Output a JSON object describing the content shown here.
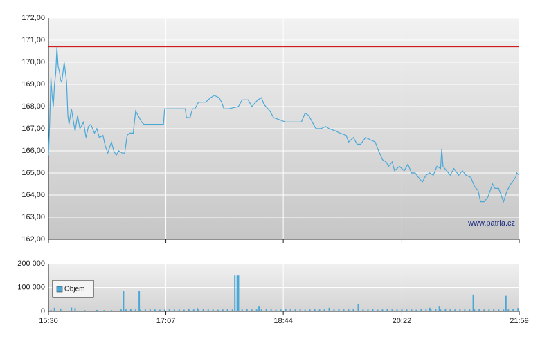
{
  "chart_data": [
    {
      "type": "line",
      "color": "#4aa8d8",
      "xlim": [
        0,
        389
      ],
      "ylim": [
        162,
        172
      ],
      "yticks": [
        {
          "value": 162,
          "label": "162,00"
        },
        {
          "value": 163,
          "label": "163,00"
        },
        {
          "value": 164,
          "label": "164,00"
        },
        {
          "value": 165,
          "label": "165,00"
        },
        {
          "value": 166,
          "label": "166,00"
        },
        {
          "value": 167,
          "label": "167,00"
        },
        {
          "value": 168,
          "label": "168,00"
        },
        {
          "value": 169,
          "label": "169,00"
        },
        {
          "value": 170,
          "label": "170,00"
        },
        {
          "value": 171,
          "label": "171,00"
        },
        {
          "value": 172,
          "label": "172,00"
        }
      ],
      "grid": true,
      "reference_line": {
        "value": 170.7,
        "color": "#cc0000"
      },
      "annotation": "www.patria.cz",
      "x": [
        0,
        1,
        2,
        3,
        4,
        5,
        6,
        7,
        8,
        9,
        10,
        11,
        13,
        15,
        16,
        17,
        19,
        21,
        22,
        24,
        26,
        29,
        31,
        33,
        35,
        38,
        40,
        42,
        45,
        47,
        49,
        52,
        54,
        56,
        58,
        61,
        63,
        65,
        67,
        70,
        72,
        74,
        77,
        79,
        86,
        95,
        96,
        103,
        113,
        114,
        117,
        119,
        121,
        124,
        130,
        134,
        137,
        141,
        143,
        145,
        149,
        157,
        160,
        165,
        168,
        173,
        176,
        178,
        183,
        186,
        191,
        196,
        200,
        209,
        212,
        215,
        218,
        221,
        225,
        229,
        232,
        237,
        241,
        246,
        248,
        252,
        255,
        258,
        262,
        266,
        270,
        272,
        276,
        279,
        281,
        284,
        286,
        290,
        294,
        297,
        300,
        303,
        307,
        309,
        312,
        315,
        318,
        321,
        324,
        325,
        326,
        329,
        332,
        335,
        339,
        342,
        345,
        349,
        352,
        355,
        357,
        360,
        363,
        365,
        367,
        369,
        372,
        374,
        376,
        379,
        382,
        386,
        387,
        389
      ],
      "values": [
        165.8,
        167.2,
        169.3,
        168.5,
        168.0,
        169.0,
        169.5,
        170.7,
        169.8,
        169.6,
        169.2,
        169.1,
        170.0,
        169.1,
        167.6,
        167.2,
        167.9,
        167.2,
        166.9,
        167.6,
        167.0,
        167.3,
        166.6,
        167.1,
        167.2,
        166.8,
        167.0,
        166.6,
        166.7,
        166.2,
        165.9,
        166.4,
        166.0,
        165.8,
        166.0,
        165.9,
        165.9,
        166.7,
        166.8,
        166.8,
        167.8,
        167.6,
        167.3,
        167.2,
        167.2,
        167.2,
        167.9,
        167.9,
        167.9,
        167.5,
        167.5,
        167.9,
        167.9,
        168.2,
        168.2,
        168.4,
        168.5,
        168.4,
        168.2,
        167.9,
        167.9,
        168.0,
        168.3,
        168.3,
        168.0,
        168.3,
        168.4,
        168.1,
        167.8,
        167.5,
        167.4,
        167.3,
        167.3,
        167.3,
        167.7,
        167.6,
        167.3,
        167.0,
        167.0,
        167.1,
        167.0,
        166.9,
        166.8,
        166.7,
        166.4,
        166.6,
        166.3,
        166.3,
        166.6,
        166.5,
        166.4,
        166.1,
        165.6,
        165.5,
        165.3,
        165.5,
        165.1,
        165.3,
        165.1,
        165.4,
        165.0,
        165.0,
        164.7,
        164.6,
        164.9,
        165.0,
        164.9,
        165.3,
        165.2,
        166.1,
        165.3,
        165.1,
        164.9,
        165.2,
        164.9,
        165.1,
        164.9,
        164.8,
        164.4,
        164.2,
        163.7,
        163.7,
        163.9,
        164.2,
        164.5,
        164.3,
        164.3,
        164.0,
        163.7,
        164.2,
        164.5,
        164.8,
        165.0,
        164.9
      ]
    },
    {
      "type": "bar",
      "xlim": [
        0,
        389
      ],
      "ylim": [
        0,
        200000
      ],
      "yticks": [
        0,
        {
          "value": 100000,
          "label": "100 000"
        },
        {
          "value": 200000,
          "label": "200 000"
        }
      ],
      "xticks": [
        {
          "value": 0,
          "label": "15:30"
        },
        {
          "value": 97,
          "label": "17:07"
        },
        {
          "value": 194,
          "label": "18:44"
        },
        {
          "value": 292,
          "label": "20:22"
        },
        {
          "value": 389,
          "label": "21:59"
        }
      ],
      "grid": true,
      "legend": "left",
      "series": [
        {
          "name": "Objem",
          "color": "#4aa8d8",
          "x": [
            2,
            5,
            10,
            19,
            22,
            30,
            40,
            46,
            52,
            60,
            62,
            64,
            68,
            72,
            75,
            76,
            80,
            84,
            88,
            92,
            96,
            100,
            104,
            108,
            112,
            116,
            120,
            123,
            124,
            128,
            132,
            136,
            140,
            144,
            148,
            152,
            154,
            156,
            157,
            160,
            164,
            168,
            172,
            174,
            176,
            180,
            184,
            188,
            192,
            196,
            200,
            204,
            208,
            212,
            216,
            220,
            224,
            228,
            232,
            236,
            240,
            244,
            248,
            252,
            256,
            260,
            264,
            268,
            272,
            276,
            280,
            284,
            288,
            292,
            296,
            300,
            304,
            308,
            312,
            315,
            316,
            320,
            323,
            324,
            328,
            332,
            336,
            340,
            344,
            348,
            351,
            352,
            356,
            360,
            364,
            368,
            372,
            376,
            378,
            380,
            384,
            388
          ],
          "values": [
            6000,
            15000,
            12000,
            16000,
            14000,
            5000,
            6000,
            5000,
            5000,
            8000,
            84000,
            8000,
            9000,
            8000,
            84000,
            7000,
            8000,
            9000,
            8000,
            7000,
            8000,
            9000,
            8000,
            8000,
            7000,
            9000,
            8000,
            14000,
            8000,
            9000,
            8000,
            8000,
            7000,
            8000,
            9000,
            8000,
            150000,
            150000,
            150000,
            8000,
            9000,
            8000,
            8000,
            20000,
            8000,
            9000,
            8000,
            7000,
            8000,
            9000,
            8000,
            8000,
            9000,
            7000,
            8000,
            9000,
            8000,
            8000,
            15000,
            8000,
            9000,
            8000,
            8000,
            9000,
            30000,
            8000,
            8000,
            9000,
            7000,
            8000,
            9000,
            8000,
            8000,
            9000,
            8000,
            8000,
            7000,
            9000,
            8000,
            15000,
            8000,
            9000,
            20000,
            8000,
            9000,
            8000,
            8000,
            9000,
            8000,
            8000,
            70000,
            8000,
            9000,
            8000,
            8000,
            9000,
            8000,
            8000,
            65000,
            8000,
            9000,
            14000
          ]
        }
      ]
    }
  ]
}
